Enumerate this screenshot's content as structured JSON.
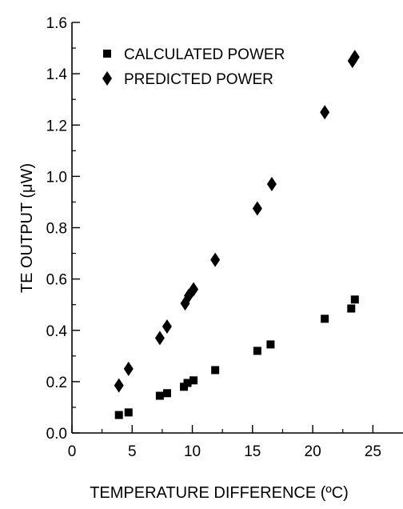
{
  "chart_data": {
    "type": "scatter",
    "xlabel": "TEMPERATURE DIFFERENCE (ºC)",
    "ylabel": "TE OUTPUT (μW)",
    "xlim": [
      0,
      27.5
    ],
    "ylim": [
      0,
      1.6
    ],
    "x_ticks": [
      0,
      5,
      10,
      15,
      20,
      25
    ],
    "x_tick_labels": [
      "0",
      "5",
      "10",
      "15",
      "20",
      "25"
    ],
    "y_ticks": [
      0,
      0.2,
      0.4,
      0.6,
      0.8,
      1.0,
      1.2,
      1.4,
      1.6
    ],
    "y_tick_labels": [
      "0.0",
      "0.2",
      "0.4",
      "0.6",
      "0.8",
      "1.0",
      "1.2",
      "1.4",
      "1.6"
    ],
    "legend_position": "top-left",
    "grid": false,
    "series": [
      {
        "name": "CALCULATED POWER",
        "marker": "square",
        "color": "#000000",
        "points": [
          [
            3.9,
            0.07
          ],
          [
            4.7,
            0.08
          ],
          [
            7.3,
            0.145
          ],
          [
            7.9,
            0.155
          ],
          [
            9.3,
            0.18
          ],
          [
            9.6,
            0.195
          ],
          [
            10.1,
            0.205
          ],
          [
            11.9,
            0.245
          ],
          [
            15.4,
            0.32
          ],
          [
            16.5,
            0.345
          ],
          [
            21.0,
            0.445
          ],
          [
            23.2,
            0.485
          ],
          [
            23.5,
            0.52
          ]
        ]
      },
      {
        "name": "PREDICTED POWER",
        "marker": "diamond",
        "color": "#000000",
        "points": [
          [
            3.9,
            0.185
          ],
          [
            4.7,
            0.25
          ],
          [
            7.3,
            0.37
          ],
          [
            7.9,
            0.415
          ],
          [
            9.4,
            0.505
          ],
          [
            9.7,
            0.535
          ],
          [
            10.1,
            0.56
          ],
          [
            11.9,
            0.675
          ],
          [
            15.4,
            0.875
          ],
          [
            16.6,
            0.97
          ],
          [
            21.0,
            1.25
          ],
          [
            23.3,
            1.45
          ],
          [
            23.5,
            1.465
          ]
        ]
      }
    ]
  }
}
